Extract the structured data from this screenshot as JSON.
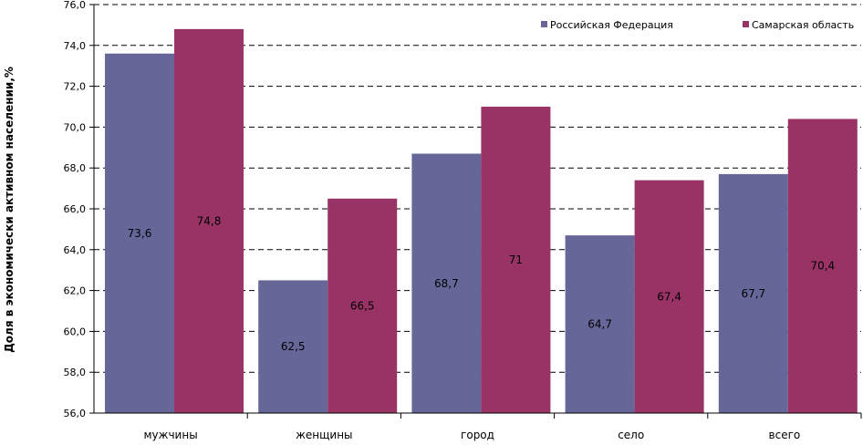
{
  "chart_data": {
    "type": "bar",
    "title": "",
    "xlabel": "",
    "ylabel": "Доля в экономически активном населении,%",
    "categories": [
      "мужчины",
      "женщины",
      "город",
      "село",
      "всего"
    ],
    "series": [
      {
        "name": "Российская Федерация",
        "color": "#676699",
        "values": [
          73.6,
          62.5,
          68.7,
          64.7,
          67.7
        ],
        "labels": [
          "73,6",
          "62,5",
          "68,7",
          "64,7",
          "67,7"
        ]
      },
      {
        "name": "Самарская область",
        "color": "#993366",
        "values": [
          74.8,
          66.5,
          71,
          67.4,
          70.4
        ],
        "labels": [
          "74,8",
          "66,5",
          "71",
          "67,4",
          "70,4"
        ]
      }
    ],
    "ylim": [
      56,
      76
    ],
    "yticks": [
      "56,0",
      "58,0",
      "60,0",
      "62,0",
      "64,0",
      "66,0",
      "68,0",
      "70,0",
      "72,0",
      "74,0",
      "76,0"
    ],
    "grid": true,
    "legend_position": "top-right"
  }
}
